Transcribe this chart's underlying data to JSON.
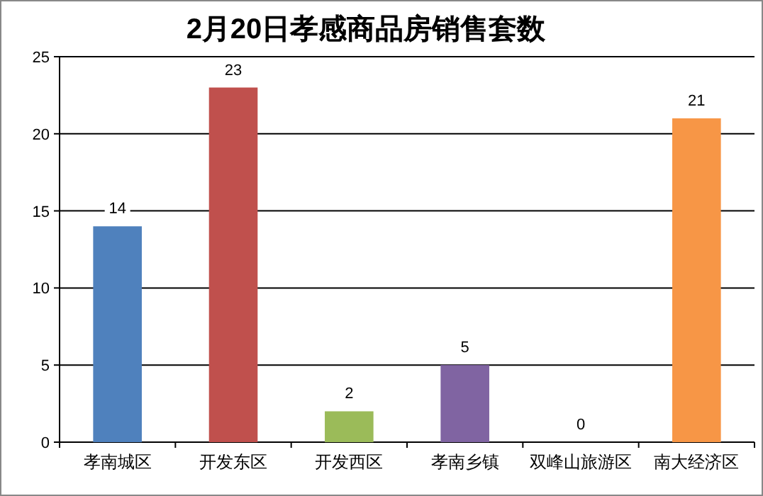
{
  "chart_data": {
    "type": "bar",
    "title": "2月20日孝感商品房销售套数",
    "categories": [
      "孝南城区",
      "开发东区",
      "开发西区",
      "孝南乡镇",
      "双峰山旅游区",
      "南大经济区"
    ],
    "values": [
      14,
      23,
      2,
      5,
      0,
      21
    ],
    "colors": [
      "#4f81bd",
      "#c0504d",
      "#9bbb59",
      "#8064a2",
      "#4bacc6",
      "#f79646"
    ],
    "ylim": [
      0,
      25
    ],
    "yticks": [
      0,
      5,
      10,
      15,
      20,
      25
    ],
    "grid": "y",
    "data_labels": true
  }
}
